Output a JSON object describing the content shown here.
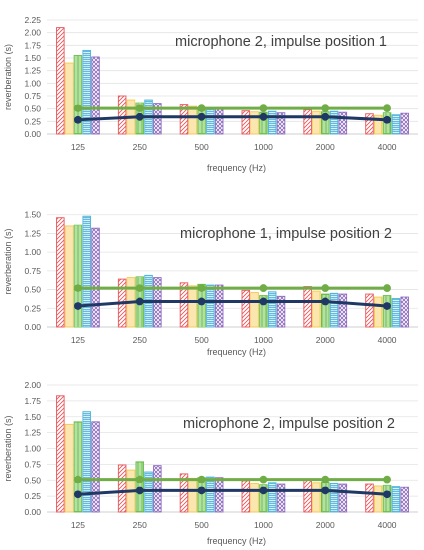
{
  "chart_data": [
    {
      "type": "bar",
      "title": "microphone 2, impulse position 1",
      "xlabel": "frequency (Hz)",
      "ylabel": "reverberation (s)",
      "categories": [
        "125",
        "250",
        "500",
        "1000",
        "2000",
        "4000"
      ],
      "ylim": [
        0,
        2.25
      ],
      "yticks": [
        "0.00",
        "0.25",
        "0.50",
        "0.75",
        "1.00",
        "1.25",
        "1.50",
        "1.75",
        "2.00",
        "2.25"
      ],
      "grid": true,
      "bar_series": [
        {
          "values": [
            2.1,
            0.75,
            0.58,
            0.46,
            0.48,
            0.4
          ],
          "color": "#e8565a",
          "pattern": "diag"
        },
        {
          "values": [
            1.4,
            0.67,
            0.55,
            0.44,
            0.45,
            0.37
          ],
          "color": "#f5c84c",
          "pattern": "vert"
        },
        {
          "values": [
            1.55,
            0.61,
            0.5,
            0.43,
            0.44,
            0.42
          ],
          "color": "#6abf4b",
          "pattern": "grid"
        },
        {
          "values": [
            1.65,
            0.67,
            0.52,
            0.45,
            0.45,
            0.38
          ],
          "color": "#4fb3d9",
          "pattern": "zigzag"
        },
        {
          "values": [
            1.52,
            0.6,
            0.5,
            0.42,
            0.43,
            0.41
          ],
          "color": "#8e6bbf",
          "pattern": "cross"
        }
      ],
      "line_series": [
        {
          "values": [
            0.51,
            0.51,
            0.51,
            0.51,
            0.51,
            0.51
          ],
          "color": "#70ad47"
        },
        {
          "values": [
            0.28,
            0.34,
            0.34,
            0.34,
            0.34,
            0.28
          ],
          "color": "#203864"
        }
      ]
    },
    {
      "type": "bar",
      "title": "microphone 1, impulse position 2",
      "xlabel": "frequency (Hz)",
      "ylabel": "reverberation (s)",
      "categories": [
        "125",
        "250",
        "500",
        "1000",
        "2000",
        "4000"
      ],
      "ylim": [
        0,
        1.75
      ],
      "yticks": [
        "0.00",
        "0.25",
        "0.50",
        "0.75",
        "1.00",
        "1.25",
        "1.50"
      ],
      "grid": true,
      "bar_series": [
        {
          "values": [
            1.46,
            0.64,
            0.59,
            0.49,
            0.54,
            0.44
          ],
          "color": "#e8565a",
          "pattern": "diag"
        },
        {
          "values": [
            1.35,
            0.66,
            0.55,
            0.46,
            0.48,
            0.4
          ],
          "color": "#f5c84c",
          "pattern": "vert"
        },
        {
          "values": [
            1.36,
            0.67,
            0.57,
            0.42,
            0.44,
            0.42
          ],
          "color": "#6abf4b",
          "pattern": "grid"
        },
        {
          "values": [
            1.48,
            0.69,
            0.56,
            0.47,
            0.45,
            0.38
          ],
          "color": "#4fb3d9",
          "pattern": "zigzag"
        },
        {
          "values": [
            1.32,
            0.66,
            0.56,
            0.41,
            0.44,
            0.4
          ],
          "color": "#8e6bbf",
          "pattern": "cross"
        }
      ],
      "line_series": [
        {
          "values": [
            0.52,
            0.52,
            0.52,
            0.52,
            0.52,
            0.52
          ],
          "color": "#70ad47"
        },
        {
          "values": [
            0.28,
            0.34,
            0.34,
            0.34,
            0.34,
            0.28
          ],
          "color": "#203864"
        }
      ]
    },
    {
      "type": "bar",
      "title": "microphone 2, impulse position 2",
      "xlabel": "frequency (Hz)",
      "ylabel": "reverberation (s)",
      "categories": [
        "125",
        "250",
        "500",
        "1000",
        "2000",
        "4000"
      ],
      "ylim": [
        0,
        2.0
      ],
      "yticks": [
        "0.00",
        "0.25",
        "0.50",
        "0.75",
        "1.00",
        "1.25",
        "1.50",
        "1.75",
        "2.00"
      ],
      "grid": true,
      "bar_series": [
        {
          "values": [
            1.83,
            0.74,
            0.6,
            0.49,
            0.5,
            0.44
          ],
          "color": "#e8565a",
          "pattern": "diag"
        },
        {
          "values": [
            1.38,
            0.66,
            0.53,
            0.45,
            0.46,
            0.41
          ],
          "color": "#f5c84c",
          "pattern": "vert"
        },
        {
          "values": [
            1.42,
            0.79,
            0.54,
            0.43,
            0.47,
            0.42
          ],
          "color": "#6abf4b",
          "pattern": "grid"
        },
        {
          "values": [
            1.58,
            0.63,
            0.55,
            0.46,
            0.45,
            0.4
          ],
          "color": "#4fb3d9",
          "pattern": "zigzag"
        },
        {
          "values": [
            1.42,
            0.73,
            0.54,
            0.44,
            0.44,
            0.39
          ],
          "color": "#8e6bbf",
          "pattern": "cross"
        }
      ],
      "line_series": [
        {
          "values": [
            0.51,
            0.51,
            0.51,
            0.51,
            0.51,
            0.51
          ],
          "color": "#70ad47"
        },
        {
          "values": [
            0.28,
            0.34,
            0.34,
            0.34,
            0.34,
            0.28
          ],
          "color": "#203864"
        }
      ]
    }
  ]
}
